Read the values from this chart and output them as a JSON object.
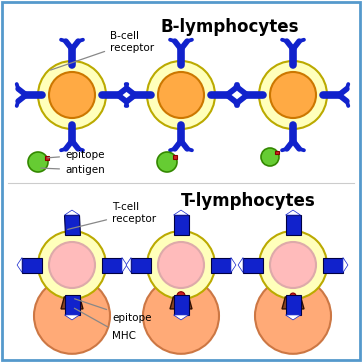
{
  "bg_color": "#ffffff",
  "border_color": "#5599cc",
  "title_b": "B-lymphocytes",
  "title_t": "T-lymphocytes",
  "label_bcell_receptor": "B-cell\nreceptor",
  "label_epitope_b": "epitope",
  "label_antigen": "antigen",
  "label_tcell_receptor": "T-cell\nreceptor",
  "label_epitope_t": "epitope",
  "label_mhc": "MHC",
  "cell_outer_color": "#ffffbb",
  "cell_outer_edge": "#bbaa00",
  "cell_inner_b_color": "#ffaa44",
  "cell_inner_b_edge": "#cc7700",
  "cell_inner_t_color": "#ffbbbb",
  "cell_inner_t_edge": "#ddaaaa",
  "receptor_color": "#1122cc",
  "receptor_edge": "#000066",
  "antigen_color": "#66cc33",
  "antigen_edge": "#338800",
  "epitope_b_color": "#cc2222",
  "mhc_body_color": "#884422",
  "mhc_cap_color": "#cc4422",
  "epitope_t_color": "#cc2222",
  "presenting_cell_color": "#ffaa77",
  "presenting_cell_edge": "#cc7744",
  "line_color": "#888888",
  "divider_color": "#cccccc"
}
